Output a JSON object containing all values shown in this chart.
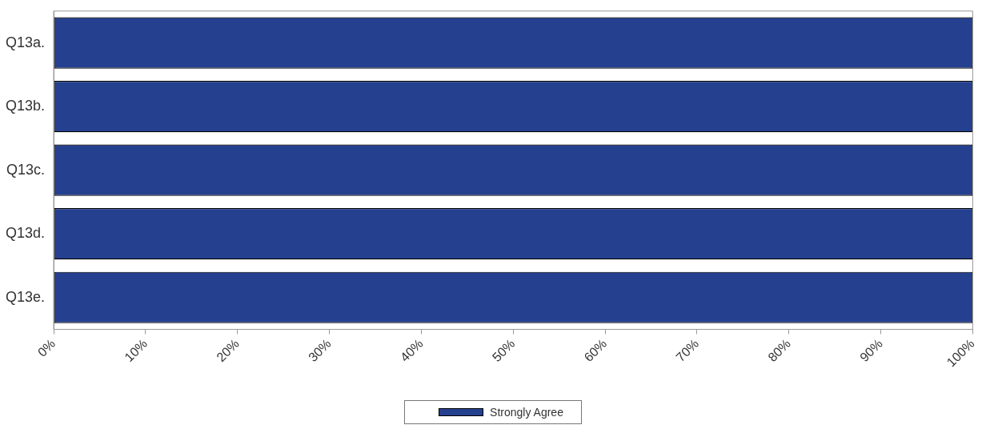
{
  "chart_data": {
    "type": "bar",
    "orientation": "horizontal",
    "categories": [
      "Q13a.",
      "Q13b.",
      "Q13c.",
      "Q13d.",
      "Q13e."
    ],
    "series": [
      {
        "name": "Strongly Agree",
        "color": "#25408f",
        "values": [
          100,
          100,
          100,
          100,
          100
        ]
      }
    ],
    "xlim": [
      0,
      100
    ],
    "xticks": [
      {
        "value": 0,
        "label": "0%"
      },
      {
        "value": 10,
        "label": "10%"
      },
      {
        "value": 20,
        "label": "20%"
      },
      {
        "value": 30,
        "label": "30%"
      },
      {
        "value": 40,
        "label": "40%"
      },
      {
        "value": 50,
        "label": "50%"
      },
      {
        "value": 60,
        "label": "60%"
      },
      {
        "value": 70,
        "label": "70%"
      },
      {
        "value": 80,
        "label": "80%"
      },
      {
        "value": 90,
        "label": "90%"
      },
      {
        "value": 100,
        "label": "100%"
      }
    ],
    "legend": "bottom"
  }
}
